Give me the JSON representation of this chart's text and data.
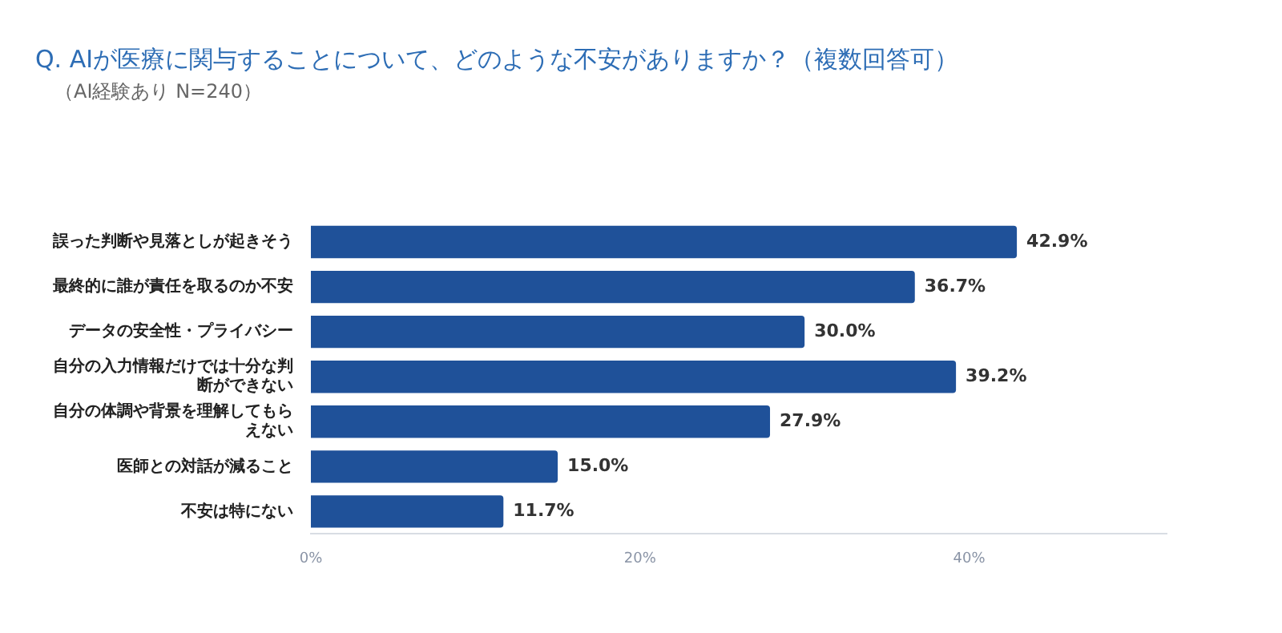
{
  "chart_data": {
    "type": "bar",
    "orientation": "horizontal",
    "title": "Q.  AIが医療に関与することについて、どのような不安がありますか？（複数回答可）",
    "subtitle": "（AI経験あり N=240）",
    "categories": [
      "誤った判断や見落としが起きそう",
      "最終的に誰が責任を取るのか不安",
      "データの安全性・プライバシー",
      "自分の入力情報だけでは十分な判断ができない",
      "自分の体調や背景を理解してもらえない",
      "医師との対話が減ること",
      "不安は特にない"
    ],
    "values": [
      42.9,
      36.7,
      30.0,
      39.2,
      27.9,
      15.0,
      11.7
    ],
    "value_labels": [
      "42.9%",
      "36.7%",
      "30.0%",
      "39.2%",
      "27.9%",
      "15.0%",
      "11.7%"
    ],
    "color": "#1f5199",
    "xlim": [
      0,
      52
    ],
    "xticks": [
      {
        "value": 0,
        "label": "0%"
      },
      {
        "value": 20,
        "label": "20%"
      },
      {
        "value": 40,
        "label": "40%"
      }
    ],
    "grid": false,
    "legend": false
  }
}
